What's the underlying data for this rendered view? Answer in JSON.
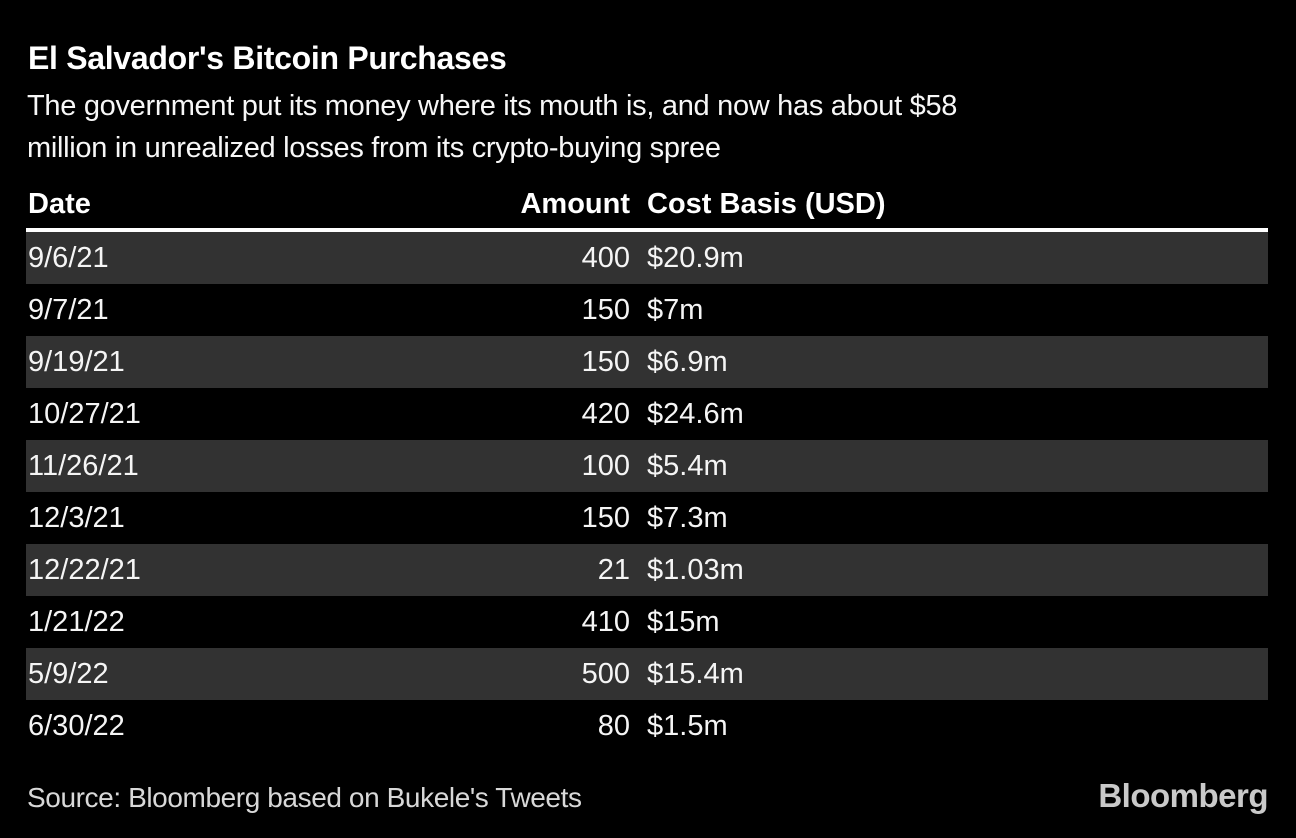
{
  "colors": {
    "background": "#000000",
    "row_alternate": "#323232",
    "header_rule": "#ffffff",
    "title_text": "#ffffff",
    "body_text": "#f5f5f5",
    "source_text": "#d8d8d8",
    "logo_text": "#c9c9c9"
  },
  "header": {
    "title": "El Salvador's Bitcoin Purchases",
    "subtitle_line1": "The government put its money where its mouth is, and now has about $58",
    "subtitle_line2": "million in unrealized losses from its crypto-buying spree"
  },
  "table": {
    "columns": [
      "Date",
      "Amount",
      "Cost Basis (USD)"
    ],
    "rows": [
      {
        "date": "9/6/21",
        "amount": "400",
        "cost": "$20.9m"
      },
      {
        "date": "9/7/21",
        "amount": "150",
        "cost": "$7m"
      },
      {
        "date": "9/19/21",
        "amount": "150",
        "cost": "$6.9m"
      },
      {
        "date": "10/27/21",
        "amount": "420",
        "cost": "$24.6m"
      },
      {
        "date": "11/26/21",
        "amount": "100",
        "cost": "$5.4m"
      },
      {
        "date": "12/3/21",
        "amount": "150",
        "cost": "$7.3m"
      },
      {
        "date": "12/22/21",
        "amount": "21",
        "cost": "$1.03m"
      },
      {
        "date": "1/21/22",
        "amount": "410",
        "cost": "$15m"
      },
      {
        "date": "5/9/22",
        "amount": "500",
        "cost": "$15.4m"
      },
      {
        "date": "6/30/22",
        "amount": "80",
        "cost": "$1.5m"
      }
    ]
  },
  "footer": {
    "source": "Source: Bloomberg based on Bukele's Tweets",
    "logo": "Bloomberg"
  },
  "chart_data": {
    "type": "table",
    "title": "El Salvador's Bitcoin Purchases",
    "subtitle": "The government put its money where its mouth is, and now has about $58 million in unrealized losses from its crypto-buying spree",
    "columns": [
      "Date",
      "Amount",
      "Cost Basis (USD)"
    ],
    "rows": [
      [
        "9/6/21",
        400,
        "$20.9m"
      ],
      [
        "9/7/21",
        150,
        "$7m"
      ],
      [
        "9/19/21",
        150,
        "$6.9m"
      ],
      [
        "10/27/21",
        420,
        "$24.6m"
      ],
      [
        "11/26/21",
        100,
        "$5.4m"
      ],
      [
        "12/3/21",
        150,
        "$7.3m"
      ],
      [
        "12/22/21",
        21,
        "$1.03m"
      ],
      [
        "1/21/22",
        410,
        "$15m"
      ],
      [
        "5/9/22",
        500,
        "$15.4m"
      ],
      [
        "6/30/22",
        80,
        "$1.5m"
      ]
    ],
    "source": "Source: Bloomberg based on Bukele's Tweets",
    "layout_hints": {
      "row_striping": "odd rows dark gray (#323232), even rows black",
      "amount_alignment": "right",
      "header_rule": "4px solid white under column headers"
    }
  }
}
